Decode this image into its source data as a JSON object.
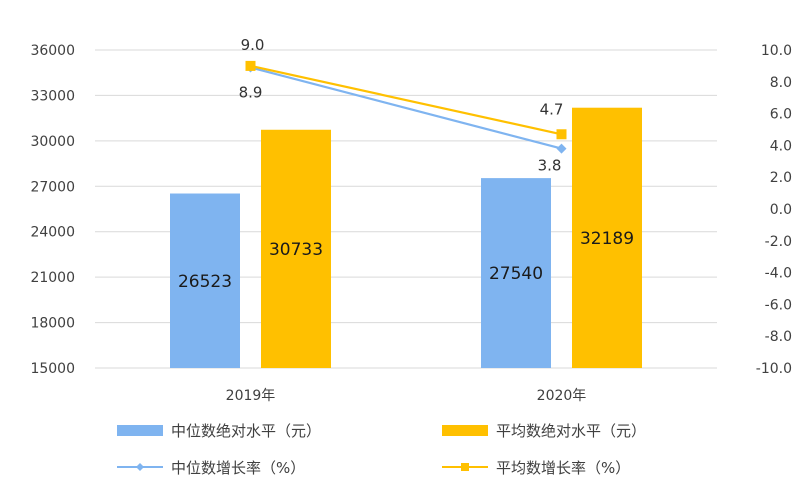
{
  "chart_data": {
    "type": "bar",
    "categories": [
      "2019年",
      "2020年"
    ],
    "series": [
      {
        "name": "中位数绝对水平（元）",
        "kind": "bar",
        "axis": "left",
        "color": "#7fb4f0",
        "values": [
          26523,
          27540
        ]
      },
      {
        "name": "平均数绝对水平（元）",
        "kind": "bar",
        "axis": "left",
        "color": "#ffc000",
        "values": [
          30733,
          32189
        ]
      },
      {
        "name": "中位数增长率（%）",
        "kind": "line",
        "axis": "right",
        "color": "#7fb4f0",
        "marker": "diamond",
        "values": [
          8.9,
          3.8
        ]
      },
      {
        "name": "平均数增长率（%）",
        "kind": "line",
        "axis": "right",
        "color": "#ffc000",
        "marker": "square",
        "values": [
          9.0,
          4.7
        ]
      }
    ],
    "left_axis": {
      "min": 15000,
      "max": 36000,
      "ticks": [
        "15000",
        "18000",
        "21000",
        "24000",
        "27000",
        "30000",
        "33000",
        "36000"
      ]
    },
    "right_axis": {
      "min": -10,
      "max": 10,
      "ticks": [
        "-10.0",
        "-8.0",
        "-6.0",
        "-4.0",
        "-2.0",
        "0.0",
        "2.0",
        "4.0",
        "6.0",
        "8.0",
        "10.0"
      ]
    },
    "gridlines": true,
    "legend_position": "bottom"
  }
}
